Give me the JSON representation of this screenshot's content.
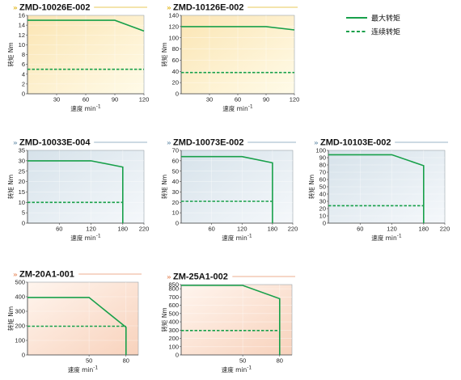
{
  "colors": {
    "max_torque": "#18a04a",
    "continuous_torque": "#18a04a",
    "yellow_accent": "#e2b820",
    "blue_accent": "#7a9cb4",
    "orange_accent": "#e8936a",
    "yellow_bg_light": "#fffbe8",
    "yellow_bg_dark": "#fbe5b4",
    "blue_bg_light": "#f5f8fb",
    "blue_bg_dark": "#d6e2ea",
    "orange_bg_light": "#fff5ee",
    "orange_bg_dark": "#f8d2bc"
  },
  "legend": {
    "max_label": "最大转矩",
    "cont_label": "连续转矩"
  },
  "chart_data": [
    {
      "type": "line",
      "title": "ZMD-10026E-002",
      "theme": "yellow",
      "xlabel": "速度 min",
      "xlabel_sup": "-1",
      "ylabel": "转矩 Nm",
      "xlim": [
        0,
        120
      ],
      "ylim": [
        0,
        16
      ],
      "xticks": [
        30,
        60,
        90,
        120
      ],
      "yticks": [
        0,
        2,
        4,
        6,
        8,
        10,
        12,
        14,
        16
      ],
      "series": [
        {
          "name": "最大转矩",
          "style": "solid",
          "points": [
            [
              0,
              15
            ],
            [
              90,
              15
            ],
            [
              120,
              12.8
            ]
          ]
        },
        {
          "name": "连续转矩",
          "style": "dashed",
          "points": [
            [
              0,
              5
            ],
            [
              120,
              5
            ]
          ]
        }
      ]
    },
    {
      "type": "line",
      "title": "ZMD-10126E-002",
      "theme": "yellow",
      "xlabel": "速度 min",
      "xlabel_sup": "-1",
      "ylabel": "转矩 Nm",
      "xlim": [
        0,
        120
      ],
      "ylim": [
        0,
        140
      ],
      "xticks": [
        30,
        60,
        90,
        120
      ],
      "yticks": [
        0,
        20,
        40,
        60,
        80,
        100,
        120,
        140
      ],
      "series": [
        {
          "name": "最大转矩",
          "style": "solid",
          "points": [
            [
              0,
              120
            ],
            [
              90,
              120
            ],
            [
              120,
              114
            ]
          ]
        },
        {
          "name": "连续转矩",
          "style": "dashed",
          "points": [
            [
              0,
              38
            ],
            [
              120,
              38
            ]
          ]
        }
      ]
    },
    {
      "type": "line",
      "title": "ZMD-10033E-004",
      "theme": "blue",
      "xlabel": "速度 min",
      "xlabel_sup": "-1",
      "ylabel": "转矩 Nm",
      "xlim": [
        0,
        220
      ],
      "ylim": [
        0,
        35
      ],
      "xticks": [
        60,
        120,
        180,
        220
      ],
      "yticks": [
        0,
        5,
        10,
        15,
        20,
        25,
        30,
        35
      ],
      "series": [
        {
          "name": "最大转矩",
          "style": "solid",
          "points": [
            [
              0,
              30
            ],
            [
              120,
              30
            ],
            [
              180,
              27
            ],
            [
              180,
              0
            ]
          ]
        },
        {
          "name": "连续转矩",
          "style": "dashed",
          "points": [
            [
              0,
              10
            ],
            [
              180,
              10
            ]
          ]
        }
      ]
    },
    {
      "type": "line",
      "title": "ZMD-10073E-002",
      "theme": "blue",
      "xlabel": "速度 min",
      "xlabel_sup": "-1",
      "ylabel": "转矩 Nm",
      "xlim": [
        0,
        220
      ],
      "ylim": [
        0,
        70
      ],
      "xticks": [
        60,
        120,
        180,
        220
      ],
      "yticks": [
        0,
        10,
        20,
        30,
        40,
        50,
        60,
        70
      ],
      "series": [
        {
          "name": "最大转矩",
          "style": "solid",
          "points": [
            [
              0,
              64
            ],
            [
              120,
              64
            ],
            [
              180,
              58
            ],
            [
              180,
              0
            ]
          ]
        },
        {
          "name": "连续转矩",
          "style": "dashed",
          "points": [
            [
              0,
              21
            ],
            [
              180,
              21
            ]
          ]
        }
      ]
    },
    {
      "type": "line",
      "title": "ZMD-10103E-002",
      "theme": "blue",
      "xlabel": "速度 min",
      "xlabel_sup": "-1",
      "ylabel": "转矩 Nm",
      "xlim": [
        0,
        220
      ],
      "ylim": [
        0,
        100
      ],
      "xticks": [
        60,
        120,
        180,
        220
      ],
      "yticks": [
        0,
        10,
        20,
        30,
        40,
        50,
        60,
        70,
        80,
        90,
        100
      ],
      "series": [
        {
          "name": "最大转矩",
          "style": "solid",
          "points": [
            [
              0,
              94
            ],
            [
              120,
              94
            ],
            [
              180,
              79
            ],
            [
              180,
              0
            ]
          ]
        },
        {
          "name": "连续转矩",
          "style": "dashed",
          "points": [
            [
              0,
              24
            ],
            [
              180,
              24
            ]
          ]
        }
      ]
    },
    {
      "type": "line",
      "title": "ZM-20A1-001",
      "theme": "orange",
      "xlabel": "速度 min",
      "xlabel_sup": "-1",
      "ylabel": "转矩 Nm",
      "xlim": [
        0,
        90
      ],
      "ylim": [
        0,
        500
      ],
      "xticks": [
        50,
        80
      ],
      "yticks": [
        0,
        100,
        200,
        300,
        400,
        500
      ],
      "series": [
        {
          "name": "最大转矩",
          "style": "solid",
          "points": [
            [
              0,
              395
            ],
            [
              50,
              395
            ],
            [
              80,
              190
            ],
            [
              80,
              0
            ]
          ]
        },
        {
          "name": "连续转矩",
          "style": "dashed",
          "points": [
            [
              0,
              197
            ],
            [
              80,
              197
            ]
          ]
        }
      ]
    },
    {
      "type": "line",
      "title": "ZM-25A1-002",
      "theme": "orange",
      "xlabel": "速度 min",
      "xlabel_sup": "-1",
      "ylabel": "转矩 Nm",
      "xlim": [
        0,
        90
      ],
      "ylim": [
        0,
        850
      ],
      "xticks": [
        50,
        80
      ],
      "yticks": [
        0,
        100,
        200,
        300,
        400,
        500,
        600,
        700,
        800,
        850
      ],
      "series": [
        {
          "name": "最大转矩",
          "style": "solid",
          "points": [
            [
              0,
              840
            ],
            [
              50,
              840
            ],
            [
              80,
              680
            ],
            [
              80,
              0
            ]
          ]
        },
        {
          "name": "连续转矩",
          "style": "dashed",
          "points": [
            [
              0,
              295
            ],
            [
              80,
              295
            ]
          ]
        }
      ]
    }
  ]
}
